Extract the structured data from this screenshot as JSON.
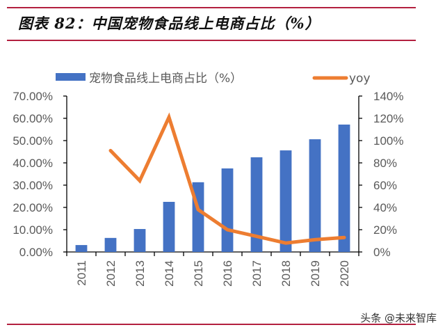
{
  "header": {
    "title": "图表 82：中国宠物食品线上电商占比（%）"
  },
  "watermark": "头条 @未来智库",
  "chart_data": {
    "type": "bar",
    "title": "图表 82：中国宠物食品线上电商占比（%）",
    "categories": [
      "2011",
      "2012",
      "2013",
      "2014",
      "2015",
      "2016",
      "2017",
      "2018",
      "2019",
      "2020"
    ],
    "series": [
      {
        "name": "宠物食品线上电商占比（%）",
        "type": "bar",
        "axis": "left",
        "color": "#4472c4",
        "values": [
          3.1,
          6.3,
          10.3,
          22.5,
          31.3,
          37.5,
          42.5,
          45.6,
          50.6,
          57.2
        ]
      },
      {
        "name": "yoy",
        "type": "line",
        "axis": "right",
        "color": "#ed7d31",
        "values": [
          null,
          91,
          64,
          121,
          38,
          20,
          14,
          8,
          11,
          13
        ]
      }
    ],
    "left_axis": {
      "ylim": [
        0,
        70
      ],
      "ticks": [
        "0.00%",
        "10.00%",
        "20.00%",
        "30.00%",
        "40.00%",
        "50.00%",
        "60.00%",
        "70.00%"
      ]
    },
    "right_axis": {
      "ylim": [
        0,
        140
      ],
      "ticks": [
        "0%",
        "20%",
        "40%",
        "60%",
        "80%",
        "100%",
        "120%",
        "140%"
      ]
    },
    "legend_position": "top",
    "grid": false,
    "xlabel": "",
    "ylabel": ""
  }
}
